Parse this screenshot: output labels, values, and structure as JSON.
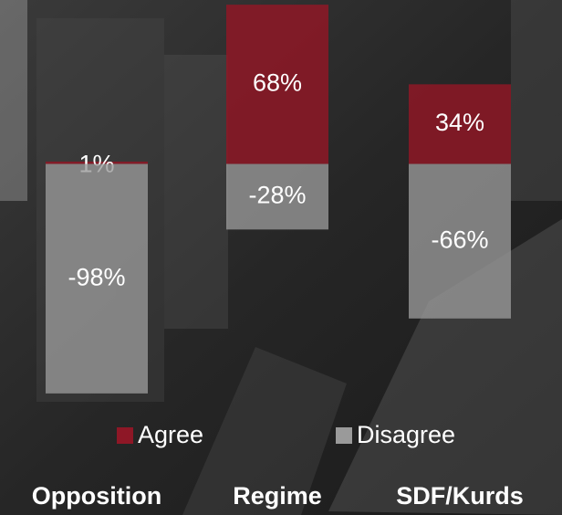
{
  "chart_data": {
    "type": "bar",
    "categories": [
      "Opposition",
      "Regime",
      "SDF/Kurds"
    ],
    "series": [
      {
        "name": "Agree",
        "color": "#8e1726",
        "values": [
          1,
          68,
          34
        ],
        "value_labels": [
          "1%",
          "68%",
          "34%"
        ]
      },
      {
        "name": "Disagree",
        "color": "#9a9a9a",
        "values": [
          -98,
          -28,
          -66
        ],
        "value_labels": [
          "-98%",
          "-28%",
          "-66%"
        ]
      }
    ],
    "ylim": [
      -100,
      70
    ],
    "grid": false
  }
}
